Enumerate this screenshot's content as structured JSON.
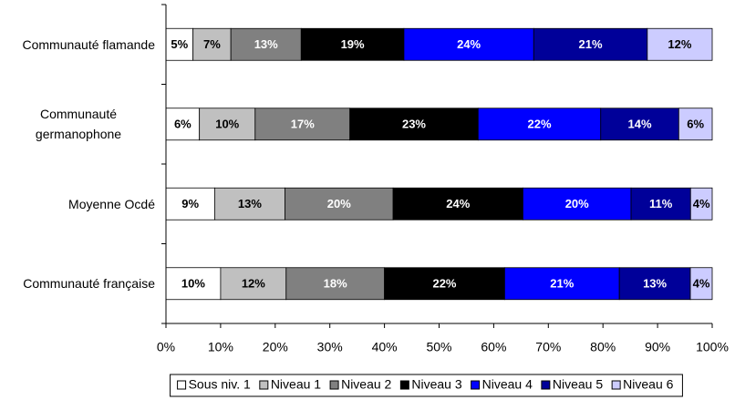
{
  "chart_data": {
    "type": "bar",
    "orientation": "horizontal",
    "stacked": "percent",
    "categories": [
      "Communauté flamande",
      "Communauté germanophone",
      "Moyenne Ocdé",
      "Communauté française"
    ],
    "series": [
      {
        "name": "Sous niv. 1",
        "color": "#ffffff",
        "values": [
          5,
          6,
          9,
          10
        ],
        "value_labels": [
          "5%",
          "6%",
          "9%",
          "10%"
        ]
      },
      {
        "name": "Niveau 1",
        "color": "#c0c0c0",
        "values": [
          7,
          10,
          13,
          12
        ],
        "value_labels": [
          "7%",
          "10%",
          "13%",
          "12%"
        ]
      },
      {
        "name": "Niveau 2",
        "color": "#808080",
        "values": [
          13,
          17,
          20,
          18
        ],
        "value_labels": [
          "13%",
          "17%",
          "20%",
          "18%"
        ]
      },
      {
        "name": "Niveau 3",
        "color": "#000000",
        "values": [
          19,
          23,
          24,
          22
        ],
        "value_labels": [
          "19%",
          "23%",
          "24%",
          "22%"
        ]
      },
      {
        "name": "Niveau 4",
        "color": "#0000ff",
        "values": [
          24,
          22,
          20,
          21
        ],
        "value_labels": [
          "24%",
          "22%",
          "20%",
          "21%"
        ]
      },
      {
        "name": "Niveau 5",
        "color": "#000099",
        "values": [
          21,
          14,
          11,
          13
        ],
        "value_labels": [
          "21%",
          "14%",
          "11%",
          "13%"
        ]
      },
      {
        "name": "Niveau 6",
        "color": "#ccccff",
        "values": [
          12,
          6,
          4,
          4
        ],
        "value_labels": [
          "12%",
          "6%",
          "4%",
          "4%"
        ]
      }
    ],
    "xlim": [
      0,
      100
    ],
    "xticks": [
      {
        "value": 0,
        "label": "0%"
      },
      {
        "value": 10,
        "label": "10%"
      },
      {
        "value": 20,
        "label": "20%"
      },
      {
        "value": 30,
        "label": "30%"
      },
      {
        "value": 40,
        "label": "40%"
      },
      {
        "value": 50,
        "label": "50%"
      },
      {
        "value": 60,
        "label": "60%"
      },
      {
        "value": 70,
        "label": "70%"
      },
      {
        "value": 80,
        "label": "80%"
      },
      {
        "value": 90,
        "label": "90%"
      },
      {
        "value": 100,
        "label": "100%"
      }
    ],
    "legend": "bottom"
  }
}
